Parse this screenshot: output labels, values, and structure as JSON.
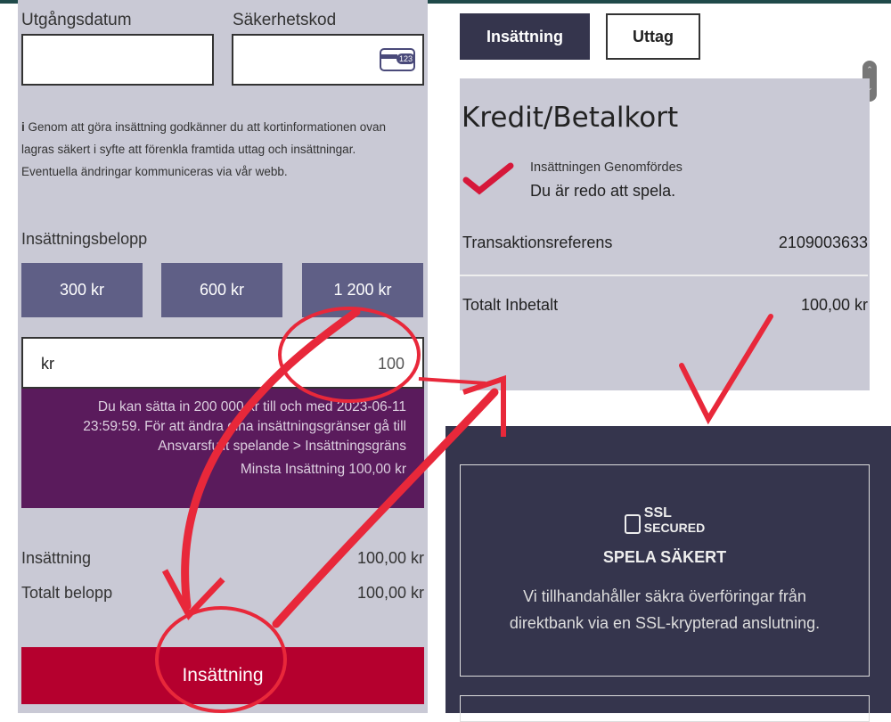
{
  "left": {
    "expiry_label": "Utgångsdatum",
    "cvc_label": "Säkerhetskod",
    "cvc_icon_text": "123",
    "info_icon": "i",
    "info_text": "Genom att göra insättning godkänner du att kortinformationen ovan lagras säkert i syfte att förenkla framtida uttag och insättningar. Eventuella ändringar kommuniceras via vår webb.",
    "amount_label": "Insättningsbelopp",
    "amount_buttons": [
      "300 kr",
      "600 kr",
      "1 200 kr"
    ],
    "currency": "kr",
    "amount_value": "100",
    "limit_text": "Du kan sätta in 200 000 kr till och med 2023-06-11 23:59:59. För att ändra dina insättningsgränser gå till Ansvarsfullt spelande > Insättningsgräns",
    "min_text": "Minsta Insättning 100,00 kr",
    "summary": [
      {
        "label": "Insättning",
        "value": "100,00 kr"
      },
      {
        "label": "Totalt belopp",
        "value": "100,00 kr"
      }
    ],
    "deposit_button": "Insättning"
  },
  "right": {
    "tabs": [
      "Insättning",
      "Uttag"
    ],
    "title": "Kredit/Betalkort",
    "status": "Insättningen Genomfördes",
    "ready": "Du är redo att spela.",
    "ref_label": "Transaktionsreferens",
    "ref_value": "2109003633",
    "total_label": "Totalt Inbetalt",
    "total_value": "100,00 kr",
    "ssl_line1": "SSL",
    "ssl_line2": "SECURED",
    "secure_title": "SPELA SÄKERT",
    "secure_text": "Vi tillhandahåller säkra överföringar från direktbank via en SSL-krypterad anslutning."
  },
  "colors": {
    "accent_red": "#e8283a",
    "dark_navy": "#35354d",
    "purple": "#5a1b5c",
    "deposit_red": "#b5002e"
  }
}
